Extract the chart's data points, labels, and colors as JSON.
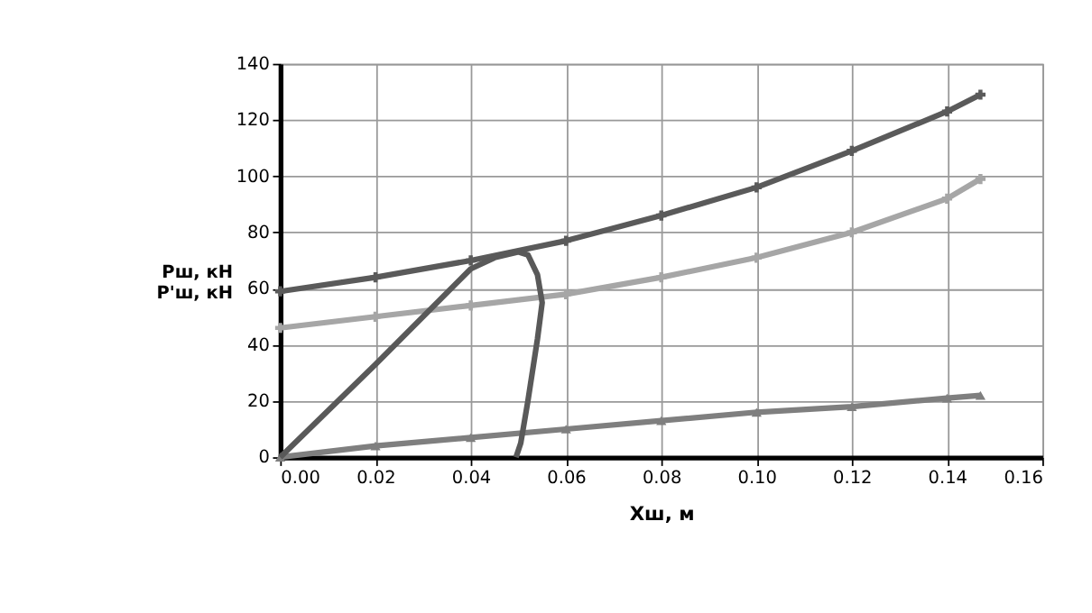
{
  "chart_data": {
    "type": "line",
    "xlabel": "Хш,  м",
    "ylabel": "Рш, кН\nР'ш, кН",
    "xlim": [
      0,
      0.16
    ],
    "ylim": [
      0,
      140
    ],
    "xticks": [
      {
        "value": 0,
        "label": "0.00"
      },
      {
        "value": 0.02,
        "label": "0.02"
      },
      {
        "value": 0.04,
        "label": "0.04"
      },
      {
        "value": 0.06,
        "label": "0.06"
      },
      {
        "value": 0.08,
        "label": "0.08"
      },
      {
        "value": 0.1,
        "label": "0.10"
      },
      {
        "value": 0.12,
        "label": "0.12"
      },
      {
        "value": 0.14,
        "label": "0.14"
      },
      {
        "value": 0.16,
        "label": "0.16"
      }
    ],
    "yticks": [
      0,
      20,
      40,
      60,
      80,
      100,
      120,
      140
    ],
    "grid": true,
    "line_style": "solid",
    "series": [
      {
        "color": "#5a5a5a",
        "marker": "cross",
        "x": [
          0,
          0.02,
          0.04,
          0.06,
          0.08,
          0.1,
          0.12,
          0.14,
          0.147
        ],
        "values": [
          59,
          64,
          70,
          77,
          86,
          96,
          109,
          123,
          129
        ]
      },
      {
        "color": "#a6a6a6",
        "marker": "cross",
        "x": [
          0,
          0.02,
          0.04,
          0.06,
          0.08,
          0.1,
          0.12,
          0.14,
          0.147
        ],
        "values": [
          46,
          50,
          54,
          58,
          64,
          71,
          80,
          92,
          99
        ]
      },
      {
        "color": "#7f7f7f",
        "marker": "triangle",
        "x": [
          0,
          0.02,
          0.04,
          0.06,
          0.08,
          0.1,
          0.12,
          0.14,
          0.147
        ],
        "values": [
          0,
          4,
          7,
          10,
          13,
          16,
          18,
          21,
          22
        ]
      },
      {
        "color": "#595959",
        "marker": "none",
        "x": [
          0,
          0.02,
          0.04,
          0.045,
          0.05,
          0.052,
          0.054,
          0.055,
          0.054,
          0.052,
          0.0505,
          0.0495
        ],
        "values": [
          0,
          33,
          67,
          71,
          73,
          72,
          65,
          55,
          42,
          20,
          5,
          0
        ]
      }
    ]
  }
}
